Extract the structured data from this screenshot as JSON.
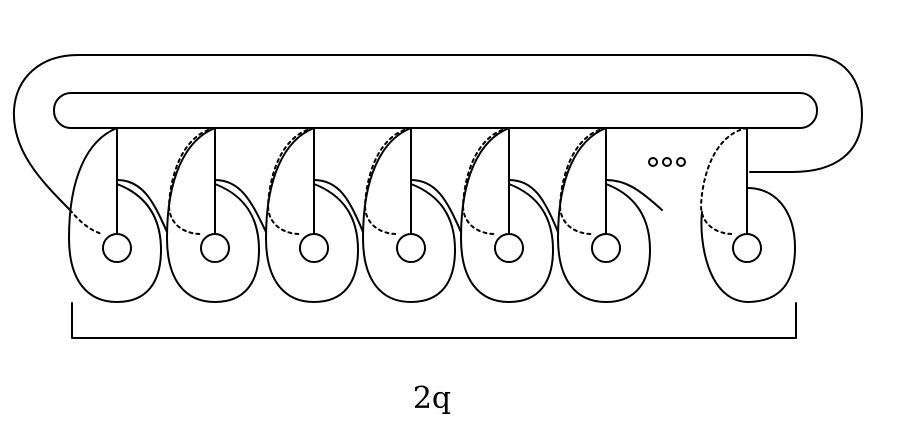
{
  "diagram": {
    "ellipsis": "∘∘∘",
    "label": "2q",
    "colors": {
      "stroke": "#000000",
      "background": "#ffffff"
    }
  }
}
